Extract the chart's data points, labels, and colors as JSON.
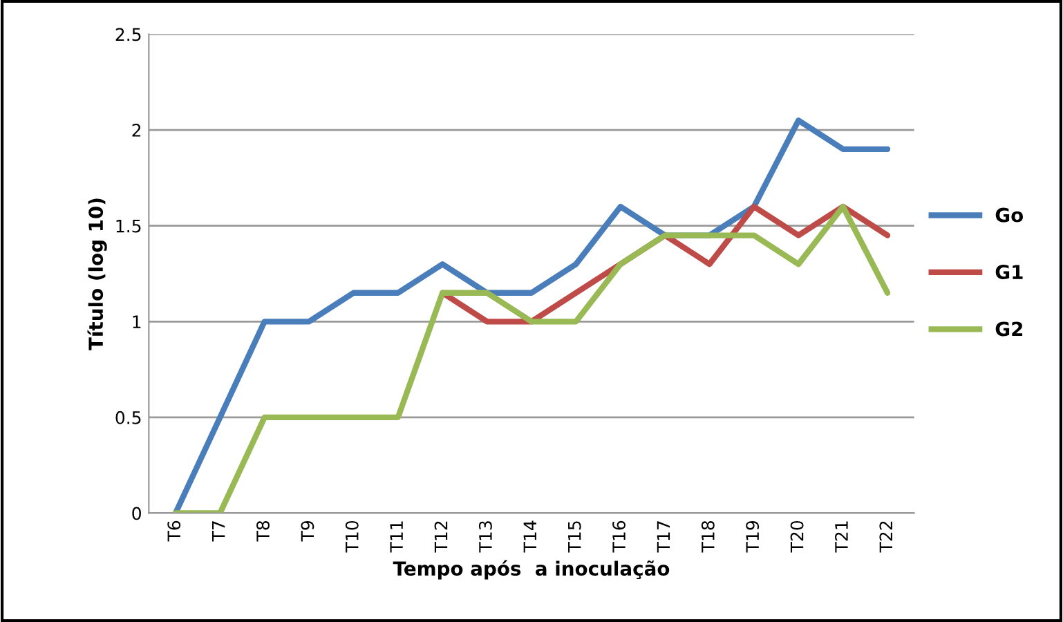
{
  "chart_data": {
    "type": "line",
    "xlabel": "Tempo após  a inoculação",
    "ylabel": "Título (log 10)",
    "categories": [
      "T6",
      "T7",
      "T8",
      "T9",
      "T10",
      "T11",
      "T12",
      "T13",
      "T14",
      "T15",
      "T16",
      "T17",
      "T18",
      "T19",
      "T20",
      "T21",
      "T22"
    ],
    "series": [
      {
        "name": "Go",
        "color": "#4a7ebb",
        "values": [
          0,
          0.5,
          1,
          1,
          1.15,
          1.15,
          1.3,
          1.15,
          1.15,
          1.3,
          1.6,
          1.45,
          1.45,
          1.6,
          2.05,
          1.9,
          1.9
        ]
      },
      {
        "name": "G1",
        "color": "#be4b48",
        "values": [
          null,
          null,
          null,
          null,
          null,
          null,
          1.15,
          1.0,
          1.0,
          1.15,
          1.3,
          1.45,
          1.3,
          1.6,
          1.45,
          1.6,
          1.45
        ]
      },
      {
        "name": "G2",
        "color": "#98b954",
        "values": [
          0,
          0,
          0.5,
          0.5,
          0.5,
          0.5,
          1.15,
          1.15,
          1.0,
          1.0,
          1.3,
          1.45,
          1.45,
          1.45,
          1.3,
          1.6,
          1.15
        ]
      }
    ],
    "ylim": [
      0,
      2.5
    ],
    "yticks": [
      0,
      0.5,
      1,
      1.5,
      2,
      2.5
    ],
    "grid": "y",
    "legend": "right",
    "marker": "none",
    "line_style": "solid"
  }
}
